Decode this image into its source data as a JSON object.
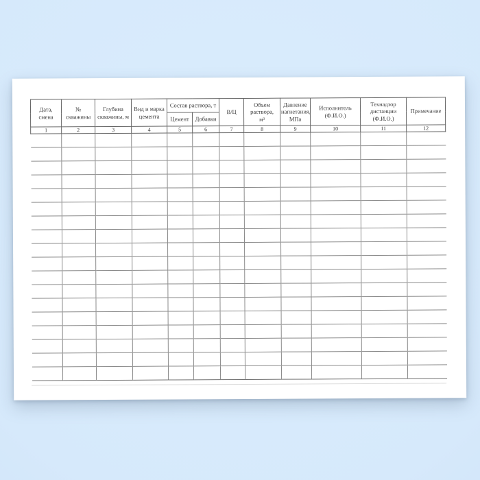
{
  "table": {
    "group_header": "Состав раствора, т",
    "columns": [
      {
        "num": "1",
        "label": [
          "Дата,",
          "смена"
        ]
      },
      {
        "num": "2",
        "label": [
          "№",
          "скважины"
        ]
      },
      {
        "num": "3",
        "label": [
          "Глубина",
          "скважины, м"
        ]
      },
      {
        "num": "4",
        "label": [
          "Вид и марка",
          "цемента"
        ]
      },
      {
        "num": "5",
        "label": [
          "Цемент"
        ]
      },
      {
        "num": "6",
        "label": [
          "Добавки"
        ]
      },
      {
        "num": "7",
        "label": [
          "В/Ц"
        ]
      },
      {
        "num": "8",
        "label": [
          "Объем",
          "раствора,",
          "м³"
        ]
      },
      {
        "num": "9",
        "label": [
          "Давление",
          "нагнетания,",
          "МПа"
        ]
      },
      {
        "num": "10",
        "label": [
          "Исполнитель",
          "(Ф.И.О.)"
        ]
      },
      {
        "num": "11",
        "label": [
          "Технадзор",
          "дистанции",
          "(Ф.И.О.)"
        ]
      },
      {
        "num": "12",
        "label": [
          "Примечание"
        ]
      }
    ],
    "empty_row_count": 18
  },
  "colors": {
    "background_blue": "#d6e9fb",
    "paper": "#ffffff",
    "grid_line": "#8a8a8a",
    "header_line": "#666666",
    "text": "#3a3a3a"
  }
}
